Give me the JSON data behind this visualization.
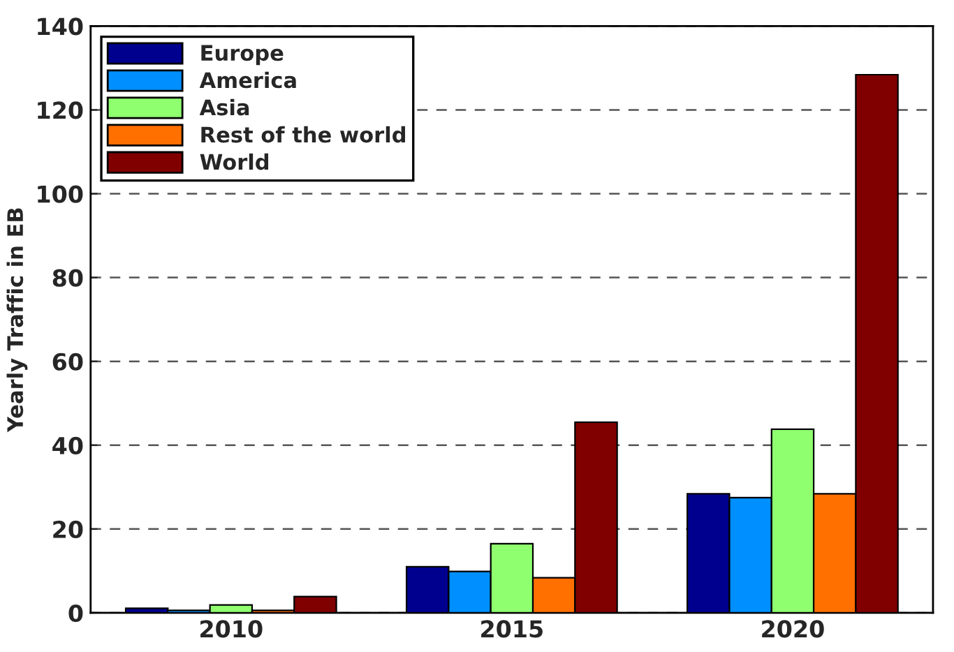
{
  "chart_data": {
    "type": "bar",
    "ylabel": "Yearly Traffic in EB",
    "categories": [
      "2010",
      "2015",
      "2020"
    ],
    "series": [
      {
        "name": "Europe",
        "color": "#00008f",
        "values": [
          1.1,
          11.0,
          28.4
        ]
      },
      {
        "name": "America",
        "color": "#008fff",
        "values": [
          0.6,
          9.9,
          27.5
        ]
      },
      {
        "name": "Asia",
        "color": "#8fff70",
        "values": [
          1.9,
          16.5,
          43.8
        ]
      },
      {
        "name": "Rest of the world",
        "color": "#ff7000",
        "values": [
          0.6,
          8.4,
          28.4
        ]
      },
      {
        "name": "World",
        "color": "#800000",
        "values": [
          3.9,
          45.5,
          128.4
        ]
      }
    ],
    "ylim": [
      0,
      140
    ],
    "yticks": [
      0,
      20,
      40,
      60,
      80,
      100,
      120,
      140
    ],
    "grid": "y",
    "legend": "top left"
  }
}
